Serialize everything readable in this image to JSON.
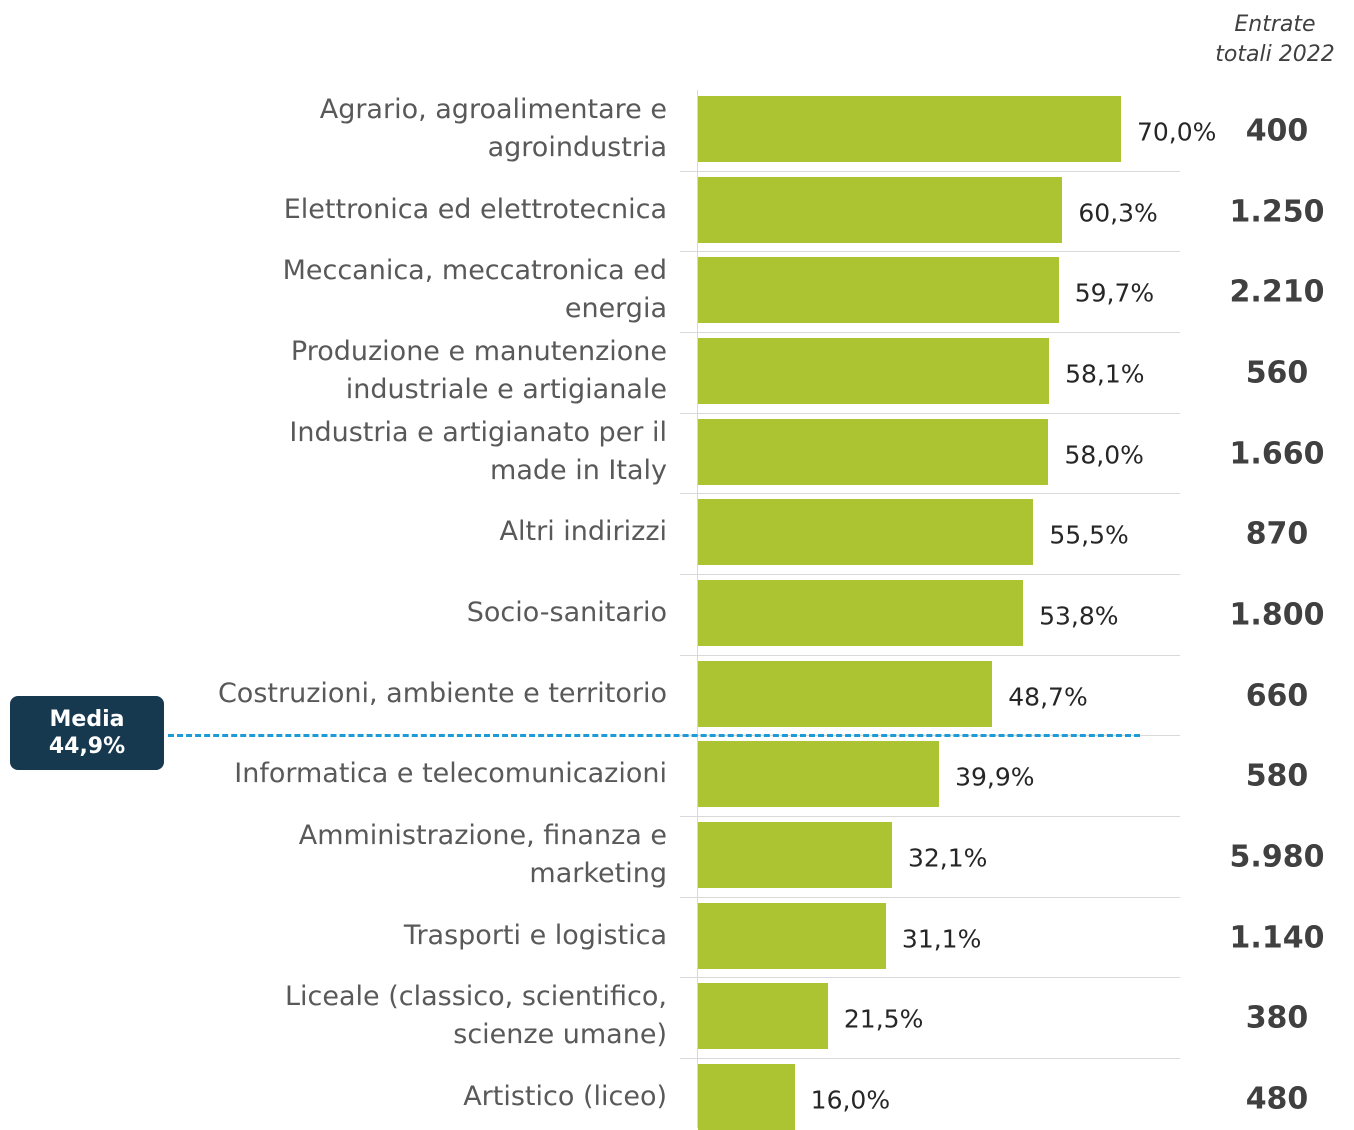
{
  "chart_data": {
    "type": "bar",
    "orientation": "horizontal",
    "color": "#acc431",
    "categories": [
      "Agrario, agroalimentare e\nagroindustria",
      "Elettronica ed elettrotecnica",
      "Meccanica, meccatronica ed\nenergia",
      "Produzione e manutenzione\nindustriale e artigianale",
      "Industria e artigianato per il\nmade in Italy",
      "Altri indirizzi",
      "Socio-sanitario",
      "Costruzioni, ambiente e territorio",
      "Informatica e telecomunicazioni",
      "Amministrazione, finanza e\nmarketing",
      "Trasporti e logistica",
      "Liceale (classico, scientifico,\nscienze umane)",
      "Artistico (liceo)"
    ],
    "values": [
      70.0,
      60.3,
      59.7,
      58.1,
      58.0,
      55.5,
      53.8,
      48.7,
      39.9,
      32.1,
      31.1,
      21.5,
      16.0
    ],
    "value_labels": [
      "70,0%",
      "60,3%",
      "59,7%",
      "58,1%",
      "58,0%",
      "55,5%",
      "53,8%",
      "48,7%",
      "39,9%",
      "32,1%",
      "31,1%",
      "21,5%",
      "16,0%"
    ],
    "totals": {
      "title": "Entrate\ntotali 2022",
      "values": [
        400,
        1250,
        2210,
        560,
        1660,
        870,
        1800,
        660,
        580,
        5980,
        1140,
        380,
        480
      ],
      "value_labels": [
        "400",
        "1.250",
        "2.210",
        "560",
        "1.660",
        "870",
        "1.800",
        "660",
        "580",
        "5.980",
        "1.140",
        "380",
        "480"
      ]
    },
    "average": {
      "label": "Media",
      "value": 44.9,
      "value_label": "44,9%"
    }
  }
}
